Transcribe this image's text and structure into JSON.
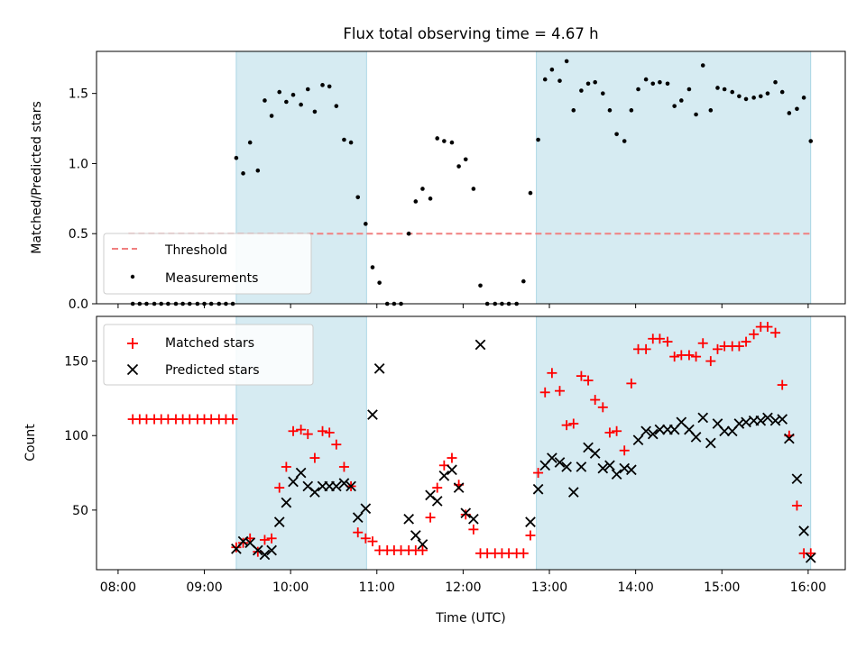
{
  "chart_data": [
    {
      "type": "scatter",
      "title": "Flux total observing time = 4.67 h",
      "xlabel": "",
      "ylabel": "Matched/Predicted stars",
      "xlim": [
        7.75,
        16.43
      ],
      "ylim": [
        0.0,
        1.8
      ],
      "yticks": [
        0.0,
        0.5,
        1.0,
        1.5
      ],
      "ytick_labels": [
        "0.0",
        "0.5",
        "1.0",
        "1.5"
      ],
      "shaded_intervals": [
        [
          9.37,
          10.88
        ],
        [
          12.85,
          16.03
        ]
      ],
      "threshold": {
        "name": "Threshold",
        "value": 0.5,
        "x_range": [
          8.12,
          16.05
        ],
        "color": "#f08080"
      },
      "legend": {
        "position": "lower-left",
        "entries": [
          "Threshold",
          "Measurements"
        ]
      },
      "series": [
        {
          "name": "Measurements",
          "color": "#000000",
          "x": [
            8.17,
            8.25,
            8.33,
            8.42,
            8.5,
            8.58,
            8.67,
            8.75,
            8.83,
            8.92,
            9.0,
            9.08,
            9.17,
            9.25,
            9.33,
            9.37,
            9.45,
            9.53,
            9.62,
            9.7,
            9.78,
            9.87,
            9.95,
            10.03,
            10.12,
            10.2,
            10.28,
            10.37,
            10.45,
            10.53,
            10.62,
            10.7,
            10.78,
            10.87,
            10.95,
            11.03,
            11.12,
            11.2,
            11.28,
            11.37,
            11.45,
            11.53,
            11.62,
            11.7,
            11.78,
            11.87,
            11.95,
            12.03,
            12.12,
            12.2,
            12.28,
            12.37,
            12.45,
            12.53,
            12.62,
            12.7,
            12.78,
            12.87,
            12.95,
            13.03,
            13.12,
            13.2,
            13.28,
            13.37,
            13.45,
            13.53,
            13.62,
            13.7,
            13.78,
            13.87,
            13.95,
            14.03,
            14.12,
            14.2,
            14.28,
            14.37,
            14.45,
            14.53,
            14.62,
            14.7,
            14.78,
            14.87,
            14.95,
            15.03,
            15.12,
            15.2,
            15.28,
            15.37,
            15.45,
            15.53,
            15.62,
            15.7,
            15.78,
            15.87,
            15.95,
            16.03
          ],
          "y": [
            0,
            0,
            0,
            0,
            0,
            0,
            0,
            0,
            0,
            0,
            0,
            0,
            0,
            0,
            0,
            1.04,
            0.93,
            1.15,
            0.95,
            1.45,
            1.34,
            1.51,
            1.44,
            1.49,
            1.42,
            1.53,
            1.37,
            1.56,
            1.55,
            1.41,
            1.17,
            1.15,
            0.76,
            0.57,
            0.26,
            0.15,
            0,
            0,
            0,
            0.5,
            0.73,
            0.82,
            0.75,
            1.18,
            1.16,
            1.15,
            0.98,
            1.03,
            0.82,
            0.13,
            0,
            0,
            0,
            0,
            0,
            0.16,
            0.79,
            1.17,
            1.6,
            1.67,
            1.59,
            1.73,
            1.38,
            1.52,
            1.57,
            1.58,
            1.5,
            1.38,
            1.21,
            1.16,
            1.38,
            1.53,
            1.6,
            1.57,
            1.58,
            1.57,
            1.41,
            1.45,
            1.53,
            1.35,
            1.7,
            1.38,
            1.54,
            1.53,
            1.51,
            1.48,
            1.46,
            1.47,
            1.48,
            1.5,
            1.58,
            1.51,
            1.36,
            1.39,
            1.47,
            1.16
          ]
        }
      ]
    },
    {
      "type": "scatter",
      "title": "",
      "xlabel": "Time (UTC)",
      "ylabel": "Count",
      "xlim": [
        7.75,
        16.43
      ],
      "ylim": [
        10,
        180
      ],
      "xticks": [
        8,
        9,
        10,
        11,
        12,
        13,
        14,
        15,
        16
      ],
      "xtick_labels": [
        "08:00",
        "09:00",
        "10:00",
        "11:00",
        "12:00",
        "13:00",
        "14:00",
        "15:00",
        "16:00"
      ],
      "yticks": [
        50,
        100,
        150
      ],
      "ytick_labels": [
        "50",
        "100",
        "150"
      ],
      "shaded_intervals": [
        [
          9.37,
          10.88
        ],
        [
          12.85,
          16.03
        ]
      ],
      "legend": {
        "position": "upper-left",
        "entries": [
          "Matched stars",
          "Predicted stars"
        ]
      },
      "series": [
        {
          "name": "Matched stars",
          "marker": "plus",
          "color": "#ff0000",
          "x": [
            8.17,
            8.25,
            8.33,
            8.42,
            8.5,
            8.58,
            8.67,
            8.75,
            8.83,
            8.92,
            9.0,
            9.08,
            9.17,
            9.25,
            9.33,
            9.37,
            9.45,
            9.53,
            9.62,
            9.7,
            9.78,
            9.87,
            9.95,
            10.03,
            10.12,
            10.2,
            10.28,
            10.37,
            10.45,
            10.53,
            10.62,
            10.7,
            10.78,
            10.87,
            10.95,
            11.03,
            11.12,
            11.2,
            11.28,
            11.37,
            11.45,
            11.53,
            11.62,
            11.7,
            11.78,
            11.87,
            11.95,
            12.03,
            12.12,
            12.2,
            12.28,
            12.37,
            12.45,
            12.53,
            12.62,
            12.7,
            12.78,
            12.87,
            12.95,
            13.03,
            13.12,
            13.2,
            13.28,
            13.37,
            13.45,
            13.53,
            13.62,
            13.7,
            13.78,
            13.87,
            13.95,
            14.03,
            14.12,
            14.2,
            14.28,
            14.37,
            14.45,
            14.53,
            14.62,
            14.7,
            14.78,
            14.87,
            14.95,
            15.03,
            15.12,
            15.2,
            15.28,
            15.37,
            15.45,
            15.53,
            15.62,
            15.7,
            15.78,
            15.87,
            15.95,
            16.03
          ],
          "y": [
            111,
            111,
            111,
            111,
            111,
            111,
            111,
            111,
            111,
            111,
            111,
            111,
            111,
            111,
            111,
            25,
            28,
            31,
            22,
            30,
            31,
            65,
            79,
            103,
            104,
            101,
            85,
            103,
            102,
            94,
            79,
            66,
            35,
            31,
            29,
            23,
            23,
            23,
            23,
            23,
            23,
            23,
            45,
            65,
            80,
            85,
            67,
            47,
            37,
            21,
            21,
            21,
            21,
            21,
            21,
            21,
            33,
            75,
            129,
            142,
            130,
            107,
            108,
            140,
            137,
            124,
            119,
            102,
            103,
            90,
            135,
            158,
            158,
            165,
            165,
            163,
            153,
            154,
            154,
            153,
            162,
            150,
            158,
            160,
            160,
            160,
            163,
            168,
            173,
            173,
            169,
            134,
            100,
            53,
            21,
            21
          ]
        },
        {
          "name": "Predicted stars",
          "marker": "x",
          "color": "#000000",
          "x": [
            9.37,
            9.45,
            9.53,
            9.62,
            9.7,
            9.78,
            9.87,
            9.95,
            10.03,
            10.12,
            10.2,
            10.28,
            10.37,
            10.45,
            10.53,
            10.62,
            10.7,
            10.78,
            10.87,
            10.95,
            11.03,
            11.37,
            11.45,
            11.53,
            11.62,
            11.7,
            11.78,
            11.87,
            11.95,
            12.03,
            12.12,
            12.2,
            12.78,
            12.87,
            12.95,
            13.03,
            13.12,
            13.2,
            13.28,
            13.37,
            13.45,
            13.53,
            13.62,
            13.7,
            13.78,
            13.87,
            13.95,
            14.03,
            14.12,
            14.2,
            14.28,
            14.37,
            14.45,
            14.53,
            14.62,
            14.7,
            14.78,
            14.87,
            14.95,
            15.03,
            15.12,
            15.2,
            15.28,
            15.37,
            15.45,
            15.53,
            15.62,
            15.7,
            15.78,
            15.87,
            15.95,
            16.03
          ],
          "y": [
            24,
            29,
            28,
            23,
            20,
            23,
            42,
            55,
            69,
            75,
            66,
            62,
            66,
            66,
            66,
            68,
            66,
            45,
            51,
            114,
            145,
            44,
            33,
            27,
            60,
            56,
            73,
            77,
            65,
            48,
            44,
            161,
            42,
            64,
            80,
            85,
            82,
            79,
            62,
            79,
            92,
            88,
            78,
            80,
            74,
            78,
            77,
            97,
            103,
            101,
            104,
            104,
            104,
            109,
            104,
            99,
            112,
            95,
            108,
            103,
            103,
            108,
            109,
            110,
            110,
            112,
            110,
            111,
            98,
            71,
            36,
            18
          ]
        }
      ]
    }
  ]
}
